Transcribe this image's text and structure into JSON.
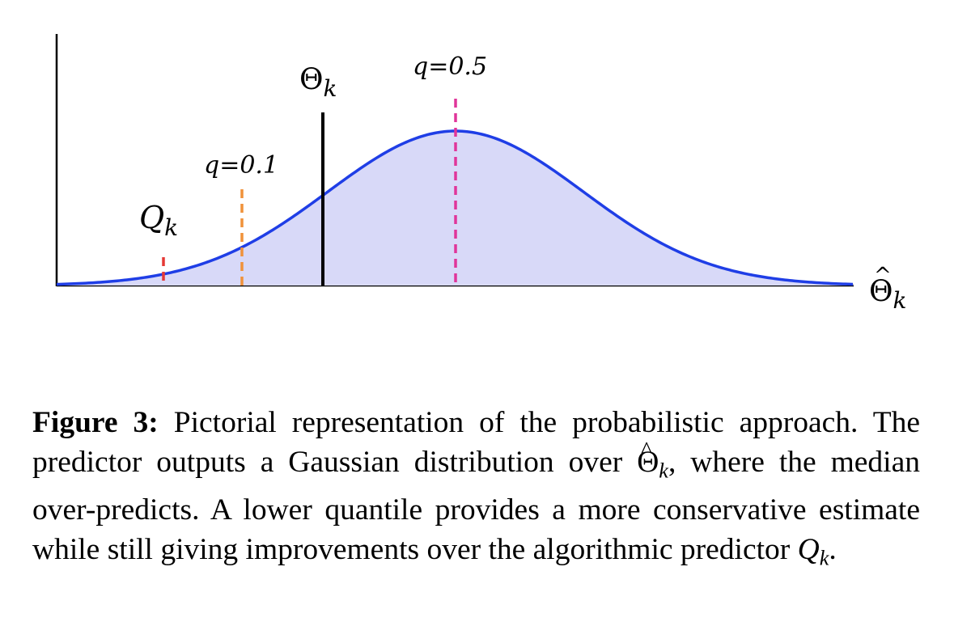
{
  "figure": {
    "labels": {
      "q_k": "Q",
      "q_k_sub": "k",
      "theta_k": "Θ",
      "theta_k_sub": "k",
      "q01": "q=0.1",
      "q05": "q=0.5",
      "theta_hat": "Θ",
      "theta_hat_sub": "k"
    },
    "colors": {
      "curve": "#1f3ee6",
      "fill": "#d8d9f8",
      "qk_line": "#e53935",
      "q01_line": "#f0923a",
      "q05_line": "#e0359a",
      "theta_line": "#000000"
    }
  },
  "caption": {
    "label": "Figure 3:",
    "part1": " Pictorial representation of the probabilistic approach. The predictor outputs a Gaussian distribution over ",
    "theta": "Θ",
    "theta_sub": "k",
    "part2": ", where the median over-predicts. A lower quantile provides a more conservative estimate while still giving improvements over the algorithmic predictor ",
    "q": "Q",
    "q_sub": "k",
    "end": "."
  }
}
